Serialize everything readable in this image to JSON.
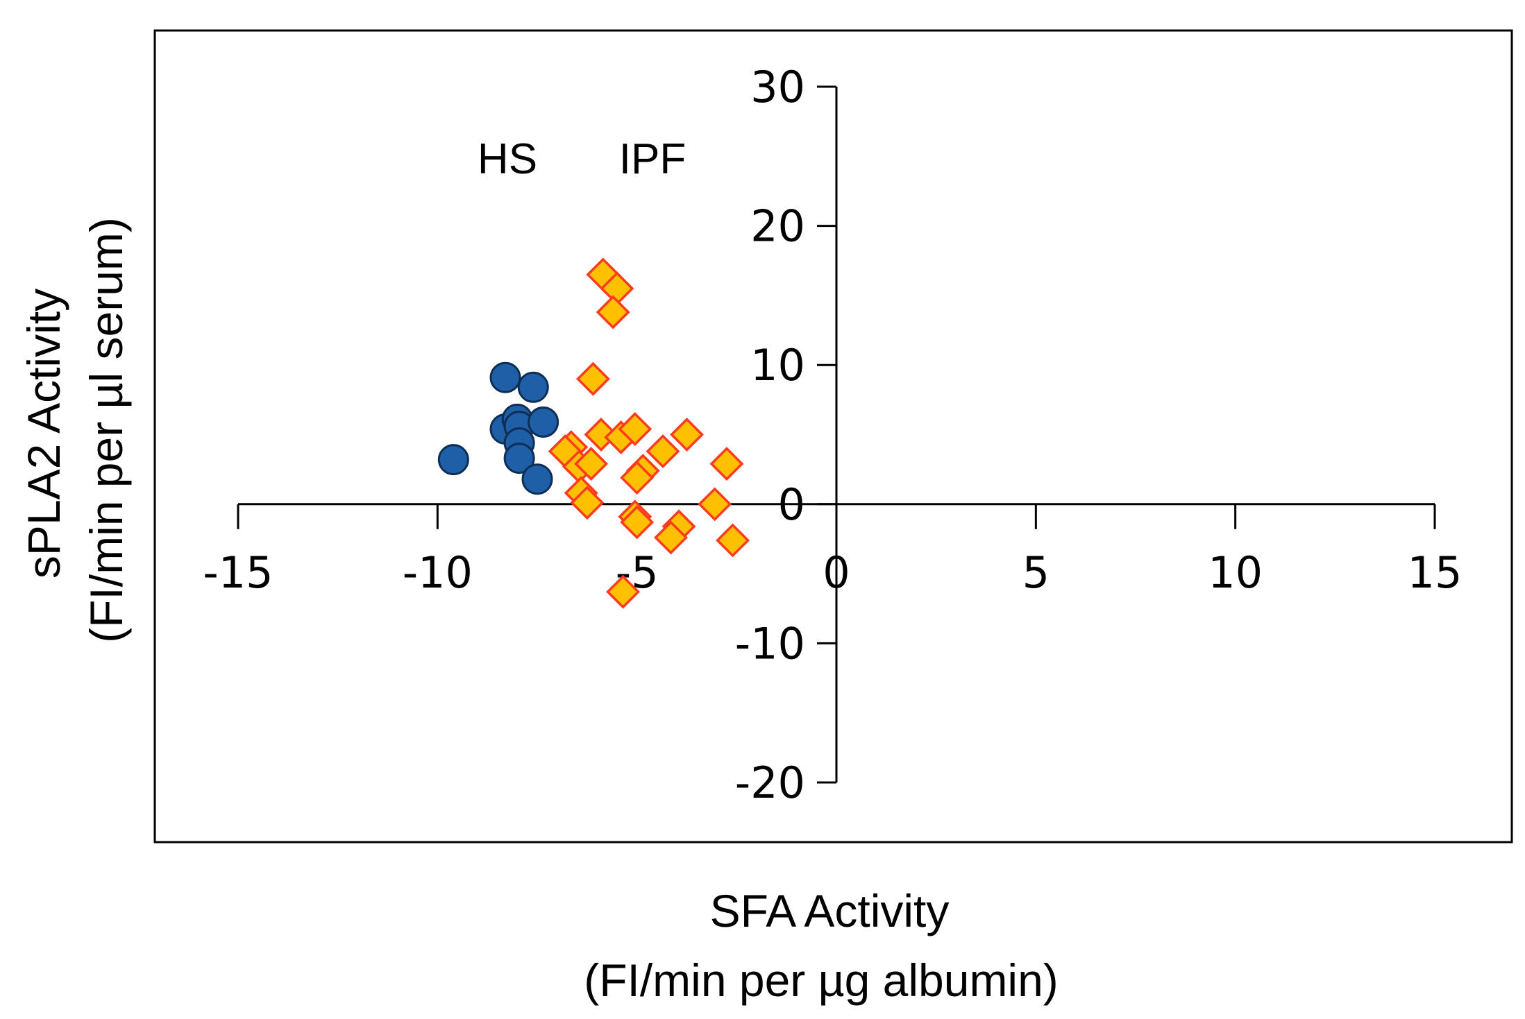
{
  "chart_data": {
    "type": "scatter",
    "title": "",
    "xlabel_line1": "SFA Activity",
    "xlabel_line2": "(FI/min per µg albumin)",
    "ylabel_line1": "sPLA2 Activity",
    "ylabel_line2": "(FI/min per µl serum)",
    "xlim": [
      -15,
      15
    ],
    "ylim": [
      -20,
      30
    ],
    "x_ticks": [
      -15,
      -10,
      -5,
      0,
      5,
      10,
      15
    ],
    "y_ticks": [
      -20,
      -10,
      0,
      10,
      20,
      30
    ],
    "x_tick_labels": [
      "-15",
      "-10",
      "-5",
      "0",
      "5",
      "10",
      "15"
    ],
    "y_tick_labels": [
      "-20",
      "-10",
      "0",
      "10",
      "20",
      "30"
    ],
    "grid": false,
    "legend": "inline labels above clusters",
    "series": [
      {
        "name": "HS",
        "marker": "circle",
        "fill": "#1f5fa8",
        "stroke": "#0d2f56",
        "points": [
          {
            "x": -9.6,
            "y": 3.2
          },
          {
            "x": -8.3,
            "y": 9.1
          },
          {
            "x": -8.3,
            "y": 5.4
          },
          {
            "x": -7.6,
            "y": 8.4
          },
          {
            "x": -8.0,
            "y": 6.1
          },
          {
            "x": -7.95,
            "y": 5.6
          },
          {
            "x": -7.95,
            "y": 4.4
          },
          {
            "x": -7.35,
            "y": 5.9
          },
          {
            "x": -7.95,
            "y": 3.3
          },
          {
            "x": -7.5,
            "y": 1.8
          }
        ]
      },
      {
        "name": "IPF",
        "marker": "diamond",
        "fill": "#ffc000",
        "stroke": "#ff3b1f",
        "points": [
          {
            "x": -5.85,
            "y": 16.5
          },
          {
            "x": -5.5,
            "y": 15.5
          },
          {
            "x": -5.6,
            "y": 13.8
          },
          {
            "x": -6.1,
            "y": 9.0
          },
          {
            "x": -5.9,
            "y": 5.0
          },
          {
            "x": -5.4,
            "y": 4.8
          },
          {
            "x": -5.05,
            "y": 5.4
          },
          {
            "x": -3.75,
            "y": 5.0
          },
          {
            "x": -4.35,
            "y": 3.8
          },
          {
            "x": -6.65,
            "y": 4.1
          },
          {
            "x": -6.8,
            "y": 3.8
          },
          {
            "x": -6.45,
            "y": 2.7
          },
          {
            "x": -6.15,
            "y": 2.9
          },
          {
            "x": -4.85,
            "y": 2.4
          },
          {
            "x": -5.0,
            "y": 1.9
          },
          {
            "x": -6.4,
            "y": 0.8
          },
          {
            "x": -6.25,
            "y": 0.1
          },
          {
            "x": -3.05,
            "y": 0.0
          },
          {
            "x": -2.75,
            "y": 2.9
          },
          {
            "x": -5.05,
            "y": -0.9
          },
          {
            "x": -5.0,
            "y": -1.3
          },
          {
            "x": -3.95,
            "y": -1.6
          },
          {
            "x": -4.15,
            "y": -2.4
          },
          {
            "x": -2.6,
            "y": -2.6
          },
          {
            "x": -5.35,
            "y": -6.3
          }
        ]
      }
    ]
  }
}
